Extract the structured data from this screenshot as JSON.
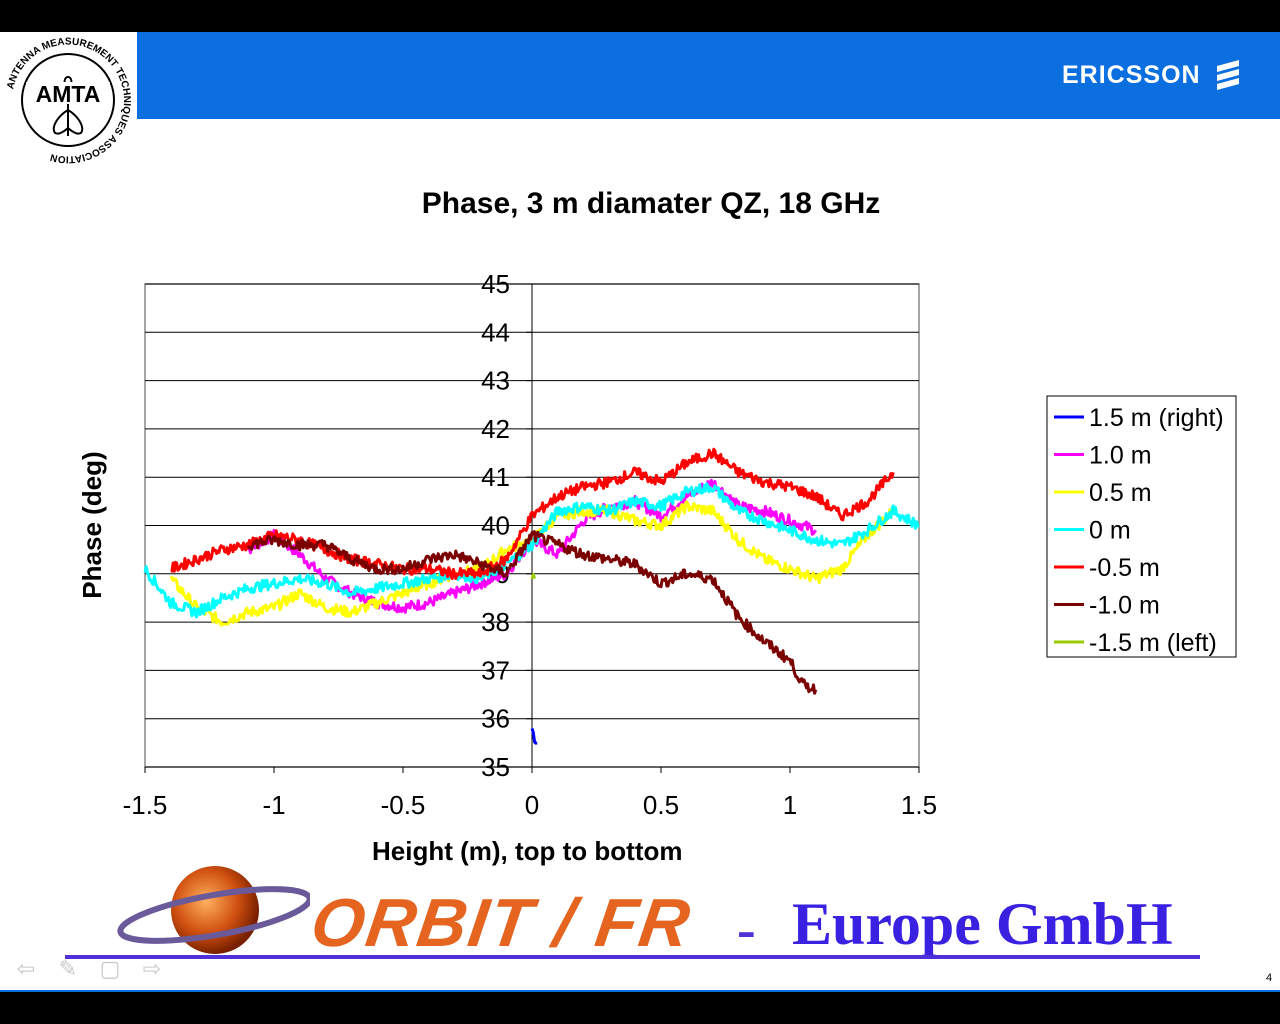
{
  "slide": {
    "amta_logo_text": "AMTA",
    "amta_ring_text": "ANTENNA MEASUREMENT TECHNIQUES ASSOCIATION",
    "ericsson_logo": "ERICSSON",
    "orbit_text": "ORBIT / FR",
    "separator": "-",
    "europe_text": "Europe GmbH",
    "page_number": "4",
    "nav_icons": [
      "arrow-left-icon",
      "pen-icon",
      "menu-icon",
      "arrow-right-icon"
    ],
    "colors": {
      "header_blue": "#0c6fe0",
      "footer_purple": "#3a20e0",
      "orbit_orange": "#e46420"
    }
  },
  "chart_data": {
    "type": "line",
    "title": "Phase, 3 m diamater QZ, 18 GHz",
    "xlabel": "Height (m), top to bottom",
    "ylabel": "Phase (deg)",
    "xlim": [
      -1.5,
      1.5
    ],
    "ylim": [
      35,
      45
    ],
    "x_ticks": [
      "-1.5",
      "-1",
      "-0.5",
      "0",
      "0.5",
      "1",
      "1.5"
    ],
    "y_ticks": [
      "35",
      "36",
      "37",
      "38",
      "39",
      "40",
      "41",
      "42",
      "43",
      "44",
      "45"
    ],
    "grid": "horizontal",
    "legend_position": "right",
    "series": [
      {
        "name": "1.5 m (right)",
        "color": "#0000ff",
        "x": [
          0.0,
          0.01,
          0.02
        ],
        "y": [
          35.8,
          35.6,
          35.5
        ]
      },
      {
        "name": "1.0 m",
        "color": "#ff00ff",
        "x": [
          -1.1,
          -1.0,
          -0.9,
          -0.8,
          -0.7,
          -0.6,
          -0.5,
          -0.4,
          -0.3,
          -0.2,
          -0.1,
          0.0,
          0.1,
          0.2,
          0.3,
          0.4,
          0.5,
          0.6,
          0.7,
          0.8,
          0.9,
          1.0,
          1.1
        ],
        "y": [
          39.5,
          39.8,
          39.4,
          38.9,
          38.6,
          38.4,
          38.3,
          38.4,
          38.6,
          38.8,
          39.0,
          39.7,
          39.4,
          40.1,
          40.4,
          40.5,
          40.2,
          40.6,
          40.9,
          40.4,
          40.3,
          40.1,
          39.9
        ]
      },
      {
        "name": "0.5 m",
        "color": "#ffff00",
        "x": [
          -1.4,
          -1.3,
          -1.2,
          -1.1,
          -1.0,
          -0.9,
          -0.8,
          -0.7,
          -0.6,
          -0.5,
          -0.4,
          -0.3,
          -0.2,
          -0.1,
          0.0,
          0.1,
          0.2,
          0.3,
          0.4,
          0.5,
          0.6,
          0.7,
          0.8,
          0.9,
          1.0,
          1.1,
          1.2,
          1.3,
          1.4
        ],
        "y": [
          38.9,
          38.3,
          38.0,
          38.2,
          38.3,
          38.6,
          38.3,
          38.2,
          38.4,
          38.6,
          38.8,
          39.0,
          39.1,
          39.5,
          39.7,
          40.2,
          40.3,
          40.3,
          40.1,
          40.0,
          40.4,
          40.3,
          39.7,
          39.3,
          39.1,
          38.9,
          39.1,
          39.8,
          40.3
        ]
      },
      {
        "name": "0 m",
        "color": "#00ffff",
        "x": [
          -1.5,
          -1.4,
          -1.3,
          -1.2,
          -1.1,
          -1.0,
          -0.9,
          -0.8,
          -0.7,
          -0.6,
          -0.5,
          -0.4,
          -0.3,
          -0.2,
          -0.1,
          0.0,
          0.1,
          0.2,
          0.3,
          0.4,
          0.5,
          0.6,
          0.7,
          0.8,
          0.9,
          1.0,
          1.1,
          1.2,
          1.3,
          1.4,
          1.5
        ],
        "y": [
          39.1,
          38.4,
          38.2,
          38.5,
          38.7,
          38.8,
          38.9,
          38.8,
          38.6,
          38.7,
          38.8,
          38.9,
          39.0,
          38.9,
          39.2,
          39.6,
          40.3,
          40.4,
          40.3,
          40.5,
          40.4,
          40.7,
          40.8,
          40.3,
          40.1,
          39.9,
          39.7,
          39.6,
          39.9,
          40.3,
          40.0
        ]
      },
      {
        "name": "-0.5 m",
        "color": "#ff0000",
        "x": [
          -1.4,
          -1.3,
          -1.2,
          -1.1,
          -1.0,
          -0.9,
          -0.8,
          -0.7,
          -0.6,
          -0.5,
          -0.4,
          -0.3,
          -0.2,
          -0.1,
          0.0,
          0.1,
          0.2,
          0.3,
          0.4,
          0.5,
          0.6,
          0.7,
          0.8,
          0.9,
          1.0,
          1.1,
          1.2,
          1.3,
          1.4
        ],
        "y": [
          39.1,
          39.3,
          39.5,
          39.6,
          39.8,
          39.7,
          39.5,
          39.3,
          39.2,
          39.1,
          39.1,
          39.0,
          39.0,
          39.3,
          40.2,
          40.6,
          40.8,
          40.9,
          41.1,
          40.9,
          41.3,
          41.5,
          41.1,
          40.9,
          40.8,
          40.6,
          40.2,
          40.5,
          41.1
        ]
      },
      {
        "name": "-1.0 m",
        "color": "#7b0000",
        "x": [
          -1.1,
          -1.0,
          -0.9,
          -0.8,
          -0.7,
          -0.6,
          -0.5,
          -0.4,
          -0.3,
          -0.2,
          -0.1,
          0.0,
          0.1,
          0.2,
          0.3,
          0.4,
          0.5,
          0.6,
          0.7,
          0.8,
          0.9,
          1.0,
          1.05,
          1.1
        ],
        "y": [
          39.6,
          39.7,
          39.6,
          39.6,
          39.3,
          39.1,
          39.1,
          39.3,
          39.4,
          39.2,
          39.0,
          39.8,
          39.6,
          39.4,
          39.3,
          39.2,
          38.8,
          39.0,
          38.9,
          38.1,
          37.6,
          37.2,
          36.7,
          36.6
        ]
      },
      {
        "name": "-1.5 m (left)",
        "color": "#99cc00",
        "x": [
          0.0,
          0.01
        ],
        "y": [
          39.0,
          38.9
        ]
      }
    ]
  }
}
